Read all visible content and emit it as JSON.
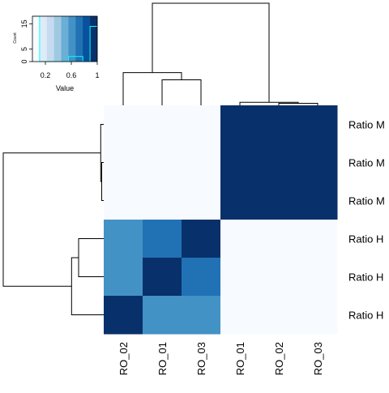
{
  "chart_data": {
    "type": "heatmap",
    "row_labels": [
      "Ratio M",
      "Ratio M",
      "Ratio M",
      "Ratio H",
      "Ratio H",
      "Ratio H"
    ],
    "column_labels": [
      "RO_02",
      "RO_01",
      "RO_03",
      "RO_01",
      "RO_02",
      "RO_03"
    ],
    "values": [
      [
        0.0,
        0.0,
        0.0,
        1.0,
        1.0,
        1.0
      ],
      [
        0.0,
        0.0,
        0.0,
        1.0,
        1.0,
        1.0
      ],
      [
        0.0,
        0.0,
        0.0,
        1.0,
        1.0,
        1.0
      ],
      [
        0.6,
        0.75,
        1.0,
        0.0,
        0.0,
        0.0
      ],
      [
        0.6,
        1.0,
        0.75,
        0.0,
        0.0,
        0.0
      ],
      [
        1.0,
        0.6,
        0.6,
        0.0,
        0.0,
        0.0
      ]
    ],
    "row_dendrogram": {
      "merges": [
        {
          "a": 1,
          "b": 2,
          "height": 0.02
        },
        {
          "a": 0,
          "b": "m1",
          "height": 0.03
        },
        {
          "a": 3,
          "b": 4,
          "height": 0.25
        },
        {
          "a": "m3",
          "b": 5,
          "height": 0.32
        },
        {
          "a": "m2",
          "b": "m4",
          "height": 1.0
        }
      ]
    },
    "column_dendrogram": {
      "merges": [
        {
          "a": 1,
          "b": 2,
          "height": 0.25
        },
        {
          "a": 0,
          "b": "m1",
          "height": 0.32
        },
        {
          "a": 4,
          "b": 5,
          "height": 0.02
        },
        {
          "a": 3,
          "b": "m3",
          "height": 0.03
        },
        {
          "a": "m2",
          "b": "m4",
          "height": 1.0
        }
      ]
    },
    "color_key": {
      "title": "Value",
      "ylabel": "Count",
      "x_ticks": [
        "0.2",
        "0.6",
        "1"
      ],
      "x_tick_values": [
        0.2,
        0.6,
        1.0
      ],
      "y_ticks": [
        "0",
        "5",
        "15"
      ],
      "y_tick_values": [
        0,
        5,
        15
      ],
      "y_max": 18,
      "range": [
        0,
        1
      ],
      "colors": [
        "#f7fbff",
        "#deebf7",
        "#c6dbef",
        "#9ecae1",
        "#6baed6",
        "#4292c6",
        "#2171b5",
        "#08519c",
        "#08306b"
      ],
      "histogram_counts": [
        18,
        0,
        0,
        0,
        0,
        2,
        2,
        0,
        14
      ]
    }
  }
}
